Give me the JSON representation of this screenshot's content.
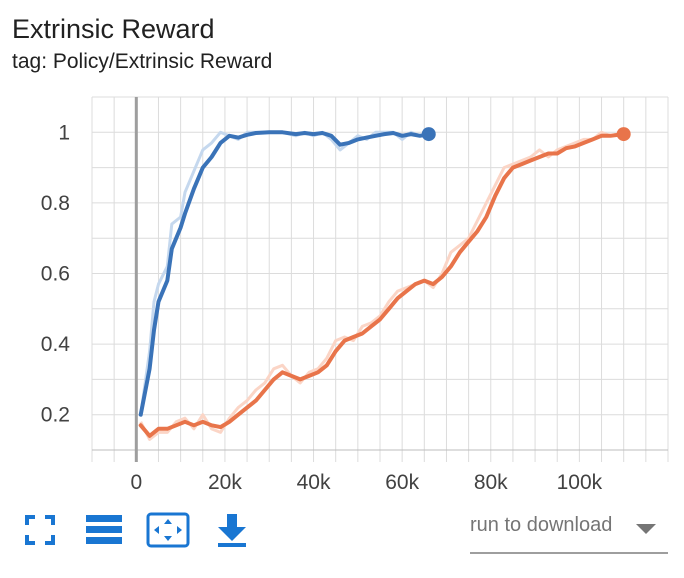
{
  "header": {
    "title": "Extrinsic Reward",
    "tag_label": "tag: Policy/Extrinsic Reward"
  },
  "chart_data": {
    "type": "line",
    "title": "Extrinsic Reward",
    "subtitle": "tag: Policy/Extrinsic Reward",
    "xlim": [
      -10000,
      120000
    ],
    "ylim": [
      0.1,
      1.1
    ],
    "x_ticks": [
      0,
      20000,
      40000,
      60000,
      80000,
      100000
    ],
    "x_tick_labels": [
      "0",
      "20k",
      "40k",
      "60k",
      "80k",
      "100k"
    ],
    "y_ticks": [
      0.2,
      0.4,
      0.6,
      0.8,
      1.0
    ],
    "y_tick_labels": [
      "0.2",
      "0.4",
      "0.6",
      "0.8",
      "1"
    ],
    "grid": true,
    "series": [
      {
        "color": "#3a73b8",
        "raw_color": "#c5d8ee",
        "x": [
          1000,
          3000,
          4000,
          5000,
          7000,
          8000,
          10000,
          11000,
          13000,
          15000,
          17000,
          19000,
          21000,
          23000,
          25000,
          27000,
          30000,
          33000,
          36000,
          38000,
          40000,
          42000,
          44000,
          46000,
          48000,
          50000,
          52000,
          54000,
          56000,
          58000,
          60000,
          62000,
          64000,
          66000
        ],
        "y": [
          0.2,
          0.33,
          0.44,
          0.52,
          0.58,
          0.67,
          0.73,
          0.77,
          0.84,
          0.9,
          0.93,
          0.97,
          0.99,
          0.985,
          0.993,
          0.998,
          1.0,
          1.0,
          0.995,
          0.998,
          0.995,
          0.998,
          0.99,
          0.965,
          0.97,
          0.98,
          0.985,
          0.99,
          0.995,
          0.998,
          0.99,
          0.995,
          0.99,
          0.995
        ],
        "raw_y": [
          0.2,
          0.38,
          0.52,
          0.57,
          0.62,
          0.74,
          0.76,
          0.83,
          0.89,
          0.95,
          0.97,
          1.0,
          0.99,
          0.98,
          1.0,
          1.0,
          1.0,
          1.0,
          0.99,
          1.0,
          0.99,
          1.0,
          0.98,
          0.95,
          0.97,
          0.99,
          0.98,
          1.0,
          1.0,
          1.0,
          0.98,
          1.0,
          0.99,
          0.995
        ]
      },
      {
        "color": "#e8744a",
        "raw_color": "#fbd5c6",
        "x": [
          1000,
          3000,
          5000,
          7000,
          9000,
          11000,
          13000,
          15000,
          17000,
          19000,
          21000,
          23000,
          25000,
          27000,
          29000,
          31000,
          33000,
          35000,
          37000,
          39000,
          41000,
          43000,
          45000,
          47000,
          49000,
          51000,
          53000,
          55000,
          57000,
          59000,
          61000,
          63000,
          65000,
          67000,
          69000,
          71000,
          73000,
          75000,
          77000,
          79000,
          81000,
          83000,
          85000,
          87000,
          89000,
          91000,
          93000,
          95000,
          97000,
          99000,
          101000,
          103000,
          105000,
          107000,
          110000
        ],
        "y": [
          0.17,
          0.14,
          0.16,
          0.16,
          0.17,
          0.18,
          0.17,
          0.18,
          0.17,
          0.165,
          0.18,
          0.2,
          0.22,
          0.24,
          0.27,
          0.3,
          0.32,
          0.31,
          0.3,
          0.31,
          0.32,
          0.34,
          0.38,
          0.41,
          0.42,
          0.43,
          0.45,
          0.47,
          0.5,
          0.53,
          0.55,
          0.57,
          0.58,
          0.57,
          0.59,
          0.62,
          0.66,
          0.69,
          0.72,
          0.76,
          0.82,
          0.87,
          0.9,
          0.91,
          0.92,
          0.93,
          0.94,
          0.94,
          0.955,
          0.96,
          0.97,
          0.98,
          0.99,
          0.99,
          0.995
        ],
        "raw_y": [
          0.18,
          0.13,
          0.15,
          0.15,
          0.18,
          0.19,
          0.16,
          0.2,
          0.16,
          0.15,
          0.19,
          0.22,
          0.24,
          0.27,
          0.29,
          0.33,
          0.34,
          0.31,
          0.29,
          0.32,
          0.33,
          0.36,
          0.41,
          0.42,
          0.41,
          0.45,
          0.46,
          0.48,
          0.52,
          0.55,
          0.56,
          0.57,
          0.58,
          0.56,
          0.6,
          0.66,
          0.68,
          0.7,
          0.75,
          0.8,
          0.85,
          0.9,
          0.91,
          0.92,
          0.93,
          0.95,
          0.93,
          0.95,
          0.96,
          0.97,
          0.98,
          0.98,
          1.0,
          0.99,
          1.0
        ]
      }
    ],
    "vertical_marker_x": 0
  },
  "toolbar": {
    "fullscreen_icon": "fullscreen-icon",
    "log_scale_icon": "menu-lines-icon",
    "fit_domain_icon": "fit-domain-icon",
    "download_icon": "download-icon",
    "accent_color": "#1976d2"
  },
  "run_select": {
    "label": "run to download"
  }
}
